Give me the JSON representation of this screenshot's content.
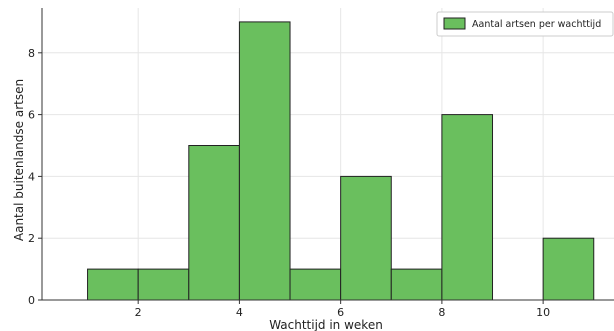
{
  "chart_data": {
    "type": "bar",
    "xlabel": "Wachttijd in weken",
    "ylabel": "Aantal buitenlandse artsen",
    "xlim": [
      0.1,
      11.4
    ],
    "ylim": [
      0,
      9.45
    ],
    "x_ticks": [
      "2",
      "4",
      "6",
      "8",
      "10"
    ],
    "y_ticks": [
      "0",
      "2",
      "4",
      "6",
      "8"
    ],
    "grid": true,
    "legend_position": "top-right",
    "bins": [
      {
        "start": 1,
        "end": 2,
        "value": 1
      },
      {
        "start": 2,
        "end": 3,
        "value": 1
      },
      {
        "start": 3,
        "end": 4,
        "value": 5
      },
      {
        "start": 4,
        "end": 5,
        "value": 9
      },
      {
        "start": 5,
        "end": 6,
        "value": 1
      },
      {
        "start": 6,
        "end": 7,
        "value": 4
      },
      {
        "start": 7,
        "end": 8,
        "value": 1
      },
      {
        "start": 8,
        "end": 9,
        "value": 6
      },
      {
        "start": 9,
        "end": 10,
        "value": 0
      },
      {
        "start": 10,
        "end": 11,
        "value": 2
      }
    ],
    "series": [
      {
        "name": "Aantal artsen per wachttijd",
        "color": "#6abf5e",
        "edge_color": "#222222"
      }
    ]
  }
}
